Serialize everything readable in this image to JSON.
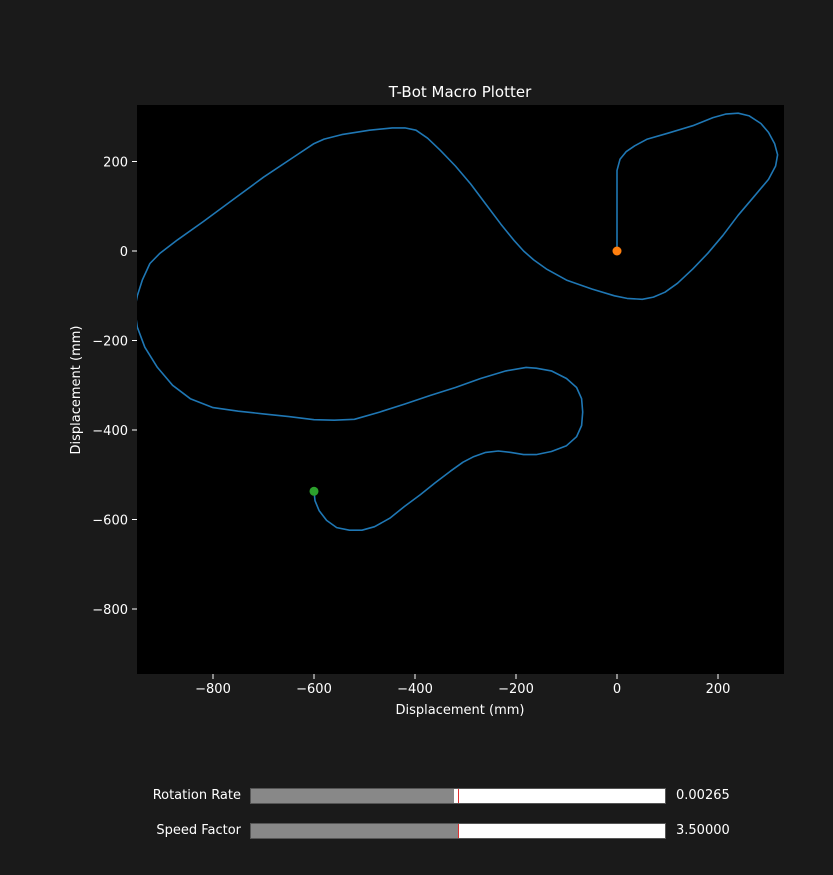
{
  "chart_data": {
    "type": "line",
    "title": "T-Bot Macro Plotter",
    "xlabel": "Displacement (mm)",
    "ylabel": "Displacement (mm)",
    "xlim": [
      -940,
      325
    ],
    "ylim": [
      -940,
      325
    ],
    "xticks": [
      -800,
      -600,
      -400,
      -200,
      0,
      200
    ],
    "yticks": [
      200,
      0,
      -200,
      -400,
      -600,
      -800
    ],
    "xtick_labels": [
      "−800",
      "−600",
      "−400",
      "−200",
      "0",
      "200"
    ],
    "ytick_labels": [
      "200",
      "0",
      "−200",
      "−400",
      "−600",
      "−800"
    ],
    "grid": false,
    "colors": {
      "path": "#1f77b4",
      "start": "#ff7f0e",
      "end": "#2ca02c",
      "axes_bg": "#000000",
      "fig_bg": "#1a1a1a"
    },
    "series": [
      {
        "values": [
          [
            0,
            0
          ],
          [
            0,
            60
          ],
          [
            0,
            120
          ],
          [
            0,
            180
          ],
          [
            6,
            205
          ],
          [
            18,
            222
          ],
          [
            35,
            235
          ],
          [
            60,
            250
          ],
          [
            100,
            263
          ],
          [
            150,
            280
          ],
          [
            190,
            298
          ],
          [
            215,
            306
          ],
          [
            240,
            308
          ],
          [
            262,
            302
          ],
          [
            285,
            285
          ],
          [
            300,
            265
          ],
          [
            312,
            240
          ],
          [
            318,
            215
          ],
          [
            314,
            190
          ],
          [
            300,
            160
          ],
          [
            270,
            120
          ],
          [
            240,
            80
          ],
          [
            210,
            35
          ],
          [
            180,
            -5
          ],
          [
            150,
            -40
          ],
          [
            120,
            -72
          ],
          [
            95,
            -92
          ],
          [
            72,
            -103
          ],
          [
            50,
            -108
          ],
          [
            20,
            -106
          ],
          [
            -5,
            -100
          ],
          [
            -50,
            -85
          ],
          [
            -100,
            -65
          ],
          [
            -140,
            -40
          ],
          [
            -165,
            -20
          ],
          [
            -185,
            0
          ],
          [
            -205,
            25
          ],
          [
            -230,
            60
          ],
          [
            -260,
            105
          ],
          [
            -290,
            150
          ],
          [
            -320,
            190
          ],
          [
            -350,
            225
          ],
          [
            -375,
            252
          ],
          [
            -398,
            270
          ],
          [
            -420,
            275
          ],
          [
            -445,
            275
          ],
          [
            -490,
            270
          ],
          [
            -545,
            260
          ],
          [
            -580,
            250
          ],
          [
            -600,
            240
          ],
          [
            -640,
            210
          ],
          [
            -700,
            165
          ],
          [
            -760,
            115
          ],
          [
            -820,
            65
          ],
          [
            -870,
            25
          ],
          [
            -905,
            -5
          ],
          [
            -925,
            -28
          ],
          [
            -940,
            -65
          ],
          [
            -950,
            -100
          ],
          [
            -955,
            -130
          ],
          [
            -950,
            -170
          ],
          [
            -935,
            -215
          ],
          [
            -910,
            -260
          ],
          [
            -880,
            -300
          ],
          [
            -845,
            -330
          ],
          [
            -800,
            -350
          ],
          [
            -750,
            -358
          ],
          [
            -700,
            -364
          ],
          [
            -650,
            -370
          ],
          [
            -600,
            -377
          ],
          [
            -560,
            -378
          ],
          [
            -520,
            -376
          ],
          [
            -470,
            -360
          ],
          [
            -420,
            -342
          ],
          [
            -370,
            -323
          ],
          [
            -320,
            -305
          ],
          [
            -270,
            -285
          ],
          [
            -220,
            -268
          ],
          [
            -180,
            -260
          ],
          [
            -160,
            -262
          ],
          [
            -130,
            -268
          ],
          [
            -100,
            -285
          ],
          [
            -80,
            -305
          ],
          [
            -70,
            -330
          ],
          [
            -68,
            -360
          ],
          [
            -70,
            -390
          ],
          [
            -80,
            -415
          ],
          [
            -100,
            -435
          ],
          [
            -130,
            -448
          ],
          [
            -160,
            -455
          ],
          [
            -185,
            -455
          ],
          [
            -210,
            -450
          ],
          [
            -235,
            -447
          ],
          [
            -260,
            -450
          ],
          [
            -285,
            -460
          ],
          [
            -305,
            -472
          ],
          [
            -330,
            -492
          ],
          [
            -360,
            -518
          ],
          [
            -390,
            -545
          ],
          [
            -420,
            -570
          ],
          [
            -450,
            -597
          ],
          [
            -480,
            -616
          ],
          [
            -505,
            -624
          ],
          [
            -530,
            -624
          ],
          [
            -555,
            -618
          ],
          [
            -575,
            -602
          ],
          [
            -590,
            -580
          ],
          [
            -598,
            -558
          ],
          [
            -600,
            -537
          ]
        ]
      }
    ],
    "start_point": [
      0,
      0
    ],
    "end_point": [
      -600,
      -537
    ]
  },
  "sliders": [
    {
      "label": "Rotation Rate",
      "value_text": "0.00265",
      "fill_fraction": 0.49,
      "initial_fraction": 0.5
    },
    {
      "label": "Speed Factor",
      "value_text": "3.50000",
      "fill_fraction": 0.5,
      "initial_fraction": 0.5
    }
  ]
}
